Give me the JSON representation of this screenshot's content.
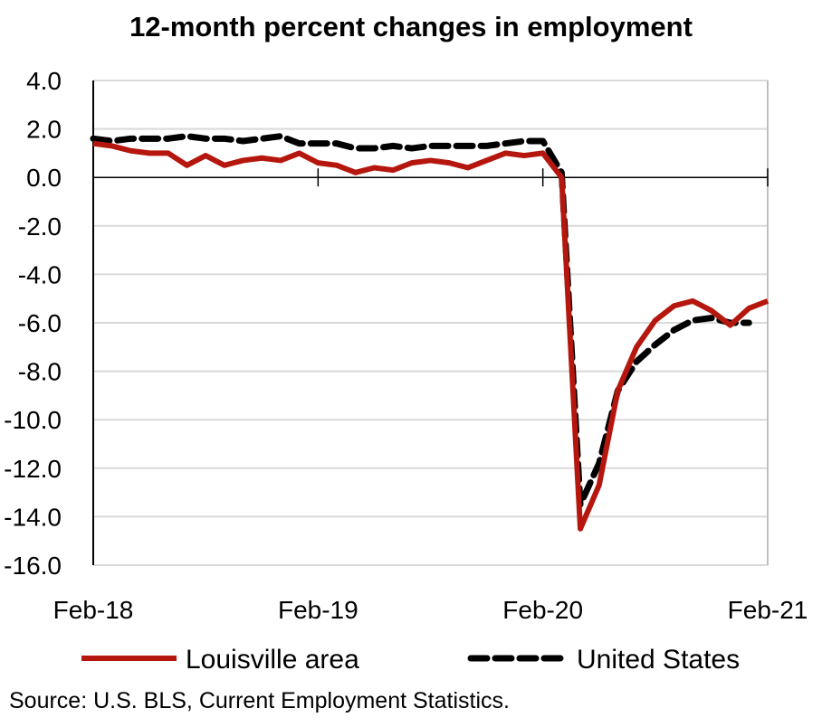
{
  "chart_data": {
    "type": "line",
    "title": "12-month percent changes in employment",
    "xlabel": "",
    "ylabel": "",
    "ylim": [
      -16,
      4
    ],
    "yticks": [
      "4.0",
      "2.0",
      "0.0",
      "-2.0",
      "-4.0",
      "-6.0",
      "-8.0",
      "-10.0",
      "-12.0",
      "-14.0",
      "-16.0"
    ],
    "ytick_values": [
      4,
      2,
      0,
      -2,
      -4,
      -6,
      -8,
      -10,
      -12,
      -14,
      -16
    ],
    "xtick_labels": [
      "Feb-18",
      "Feb-19",
      "Feb-20",
      "Feb-21"
    ],
    "xtick_index": [
      0,
      12,
      24,
      36
    ],
    "grid": true,
    "legend_position": "bottom",
    "x": [
      "Feb-18",
      "Mar-18",
      "Apr-18",
      "May-18",
      "Jun-18",
      "Jul-18",
      "Aug-18",
      "Sep-18",
      "Oct-18",
      "Nov-18",
      "Dec-18",
      "Jan-19",
      "Feb-19",
      "Mar-19",
      "Apr-19",
      "May-19",
      "Jun-19",
      "Jul-19",
      "Aug-19",
      "Sep-19",
      "Oct-19",
      "Nov-19",
      "Dec-19",
      "Jan-20",
      "Feb-20",
      "Mar-20",
      "Apr-20",
      "May-20",
      "Jun-20",
      "Jul-20",
      "Aug-20",
      "Sep-20",
      "Oct-20",
      "Nov-20",
      "Dec-20",
      "Jan-21",
      "Feb-21"
    ],
    "series": [
      {
        "name": "Louisville area",
        "color": "#b5170e",
        "style": "solid",
        "values": [
          1.4,
          1.3,
          1.1,
          1.0,
          1.0,
          0.5,
          0.9,
          0.5,
          0.7,
          0.8,
          0.7,
          1.0,
          0.6,
          0.5,
          0.2,
          0.4,
          0.3,
          0.6,
          0.7,
          0.6,
          0.4,
          0.7,
          1.0,
          0.9,
          1.0,
          0.0,
          -14.5,
          -12.7,
          -8.8,
          -7.0,
          -5.9,
          -5.3,
          -5.1,
          -5.5,
          -6.1,
          -5.4,
          -5.1
        ]
      },
      {
        "name": "United States",
        "color": "#000000",
        "style": "dashed",
        "values": [
          1.6,
          1.5,
          1.6,
          1.6,
          1.6,
          1.7,
          1.6,
          1.6,
          1.5,
          1.6,
          1.7,
          1.4,
          1.4,
          1.4,
          1.2,
          1.2,
          1.3,
          1.2,
          1.3,
          1.3,
          1.3,
          1.3,
          1.4,
          1.5,
          1.5,
          0.2,
          -13.5,
          -11.8,
          -8.8,
          -7.6,
          -6.9,
          -6.3,
          -5.9,
          -5.8,
          -6.0,
          -6.0,
          null
        ]
      }
    ],
    "source": "Source: U.S. BLS, Current Employment Statistics."
  }
}
